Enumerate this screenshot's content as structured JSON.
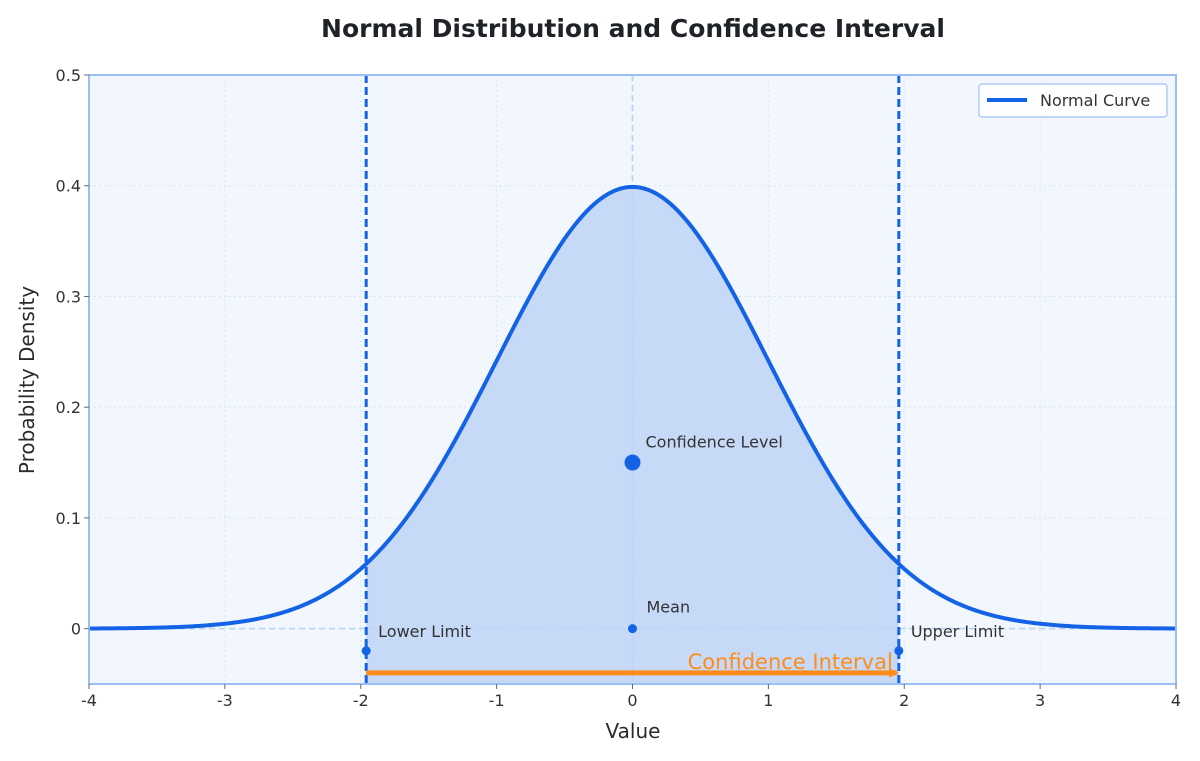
{
  "chart_data": {
    "type": "line",
    "title": "Normal Distribution and Confidence Interval",
    "xlabel": "Value",
    "ylabel": "Probability Density",
    "xlim": [
      -4,
      4
    ],
    "ylim": [
      -0.05,
      0.5
    ],
    "x_ticks": [
      -4,
      -3,
      -2,
      -1,
      0,
      1,
      2,
      3,
      4
    ],
    "y_ticks": [
      0,
      0.1,
      0.2,
      0.3,
      0.4,
      0.5
    ],
    "x_tick_labels": [
      "-4",
      "-3",
      "-2",
      "-1",
      "0",
      "1",
      "2",
      "3",
      "4"
    ],
    "y_tick_labels": [
      "0",
      "0.1",
      "0.2",
      "0.3",
      "0.4",
      "0.5"
    ],
    "grid": true,
    "legend": {
      "placement": "top-right",
      "entries": [
        "Normal Curve"
      ]
    },
    "series": [
      {
        "name": "Normal Curve",
        "distribution": "normal",
        "mean": 0,
        "std": 1,
        "color": "#1463e6"
      }
    ],
    "confidence_interval": {
      "lower": -1.96,
      "upper": 1.96,
      "fill_color": "#c6d9f7"
    },
    "points": [
      {
        "label": "Lower Limit",
        "x": -1.96,
        "y": -0.02
      },
      {
        "label": "Mean",
        "x": 0,
        "y": 0
      },
      {
        "label": "Upper Limit",
        "x": 1.96,
        "y": -0.02
      },
      {
        "label": "Confidence Level",
        "x": 0,
        "y": 0.15
      }
    ],
    "annotation_arrow": {
      "label": "Confidence Interval",
      "from": -1.96,
      "to": 1.96,
      "y": -0.04,
      "color": "#ff8c1a"
    },
    "colors": {
      "line": "#1463e6",
      "plot_bg": "#f2f7fd",
      "frame": "#9bbff5"
    }
  }
}
